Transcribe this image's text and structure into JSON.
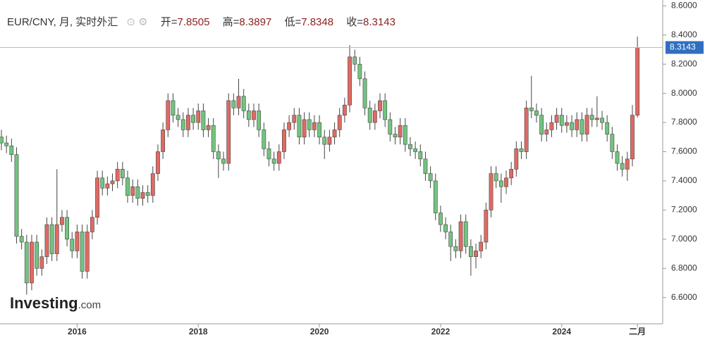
{
  "chart_data": {
    "type": "candlestick",
    "title": "EUR/CNY, 月, 实时外汇",
    "ohlc_labels": [
      "开=",
      "高=",
      "低=",
      "收="
    ],
    "watermark": [
      "Investing",
      ".com"
    ],
    "up_color": "#e06a64",
    "down_color": "#72c47e",
    "ylim": [
      6.42,
      8.64
    ],
    "yticks": [
      {
        "value": 6.6,
        "label": "6.6000"
      },
      {
        "value": 6.8,
        "label": "6.8000"
      },
      {
        "value": 7.0,
        "label": "7.0000"
      },
      {
        "value": 7.2,
        "label": "7.2000"
      },
      {
        "value": 7.4,
        "label": "7.4000"
      },
      {
        "value": 7.6,
        "label": "7.6000"
      },
      {
        "value": 7.8,
        "label": "7.8000"
      },
      {
        "value": 8.0,
        "label": "8.0000"
      },
      {
        "value": 8.2,
        "label": "8.2000"
      },
      {
        "value": 8.4,
        "label": "8.4000"
      },
      {
        "value": 8.6,
        "label": "8.6000"
      }
    ],
    "categories": [
      null,
      null,
      null,
      null,
      null,
      null,
      null,
      null,
      null,
      null,
      null,
      null,
      null,
      null,
      null,
      "2016",
      null,
      null,
      null,
      null,
      null,
      null,
      null,
      null,
      null,
      null,
      null,
      null,
      null,
      null,
      null,
      null,
      null,
      null,
      null,
      null,
      null,
      null,
      null,
      "2018",
      null,
      null,
      null,
      null,
      null,
      null,
      null,
      null,
      null,
      null,
      null,
      null,
      null,
      null,
      null,
      null,
      null,
      null,
      null,
      null,
      null,
      null,
      null,
      "2020",
      null,
      null,
      null,
      null,
      null,
      null,
      null,
      null,
      null,
      null,
      null,
      null,
      null,
      null,
      null,
      null,
      null,
      null,
      null,
      null,
      null,
      null,
      null,
      "2022",
      null,
      null,
      null,
      null,
      null,
      null,
      null,
      null,
      null,
      null,
      null,
      null,
      null,
      null,
      null,
      null,
      null,
      null,
      null,
      null,
      null,
      null,
      null,
      "2024",
      null,
      null,
      null,
      null,
      null,
      null,
      null,
      null,
      null,
      null,
      null,
      null,
      null,
      null,
      "二月"
    ],
    "open": [
      7.7,
      7.66,
      7.64,
      7.58,
      7.02,
      6.98,
      6.7,
      6.98,
      6.8,
      6.88,
      7.1,
      6.9,
      7.1,
      7.15,
      7.0,
      6.92,
      7.05,
      6.78,
      7.05,
      7.15,
      7.42,
      7.35,
      7.38,
      7.4,
      7.48,
      7.42,
      7.3,
      7.36,
      7.28,
      7.32,
      7.3,
      7.45,
      7.6,
      7.75,
      7.95,
      7.85,
      7.82,
      7.75,
      7.85,
      7.8,
      7.88,
      7.75,
      7.78,
      7.6,
      7.55,
      7.52,
      7.95,
      7.9,
      7.98,
      7.88,
      7.82,
      7.88,
      7.75,
      7.62,
      7.55,
      7.52,
      7.6,
      7.75,
      7.8,
      7.85,
      7.7,
      7.82,
      7.75,
      7.8,
      7.7,
      7.65,
      7.7,
      7.75,
      7.85,
      7.92,
      8.25,
      8.2,
      8.1,
      7.9,
      7.8,
      7.88,
      7.95,
      7.82,
      7.72,
      7.7,
      7.78,
      7.65,
      7.62,
      7.6,
      7.55,
      7.45,
      7.4,
      7.18,
      7.1,
      7.05,
      6.95,
      6.92,
      7.12,
      6.95,
      6.88,
      6.92,
      6.98,
      7.2,
      7.45,
      7.4,
      7.36,
      7.42,
      7.48,
      7.62,
      7.6,
      7.9,
      7.88,
      7.85,
      7.72,
      7.75,
      7.8,
      7.85,
      7.78,
      7.8,
      7.75,
      7.82,
      7.72,
      7.85,
      7.82,
      7.83,
      7.8,
      7.72,
      7.6,
      7.52,
      7.48,
      7.55,
      7.8505
    ],
    "high": [
      7.75,
      7.71,
      7.69,
      7.63,
      7.07,
      7.03,
      7.03,
      7.03,
      6.93,
      7.15,
      7.15,
      7.48,
      7.2,
      7.2,
      7.05,
      7.1,
      7.1,
      7.1,
      7.2,
      7.47,
      7.47,
      7.43,
      7.45,
      7.53,
      7.53,
      7.47,
      7.41,
      7.41,
      7.37,
      7.37,
      7.5,
      7.65,
      7.8,
      8.0,
      8.0,
      7.9,
      7.87,
      7.9,
      7.9,
      7.93,
      7.93,
      7.83,
      7.83,
      7.65,
      7.6,
      8.0,
      8.0,
      8.1,
      8.03,
      7.93,
      7.93,
      7.93,
      7.8,
      7.67,
      7.6,
      7.65,
      7.8,
      7.85,
      7.9,
      7.9,
      7.87,
      7.87,
      7.85,
      7.85,
      7.75,
      7.75,
      7.8,
      7.9,
      7.97,
      8.33,
      8.3,
      8.25,
      8.15,
      7.95,
      7.93,
      8.0,
      8.0,
      7.87,
      7.77,
      7.83,
      7.83,
      7.7,
      7.67,
      7.65,
      7.6,
      7.5,
      7.45,
      7.23,
      7.15,
      7.1,
      7.0,
      7.17,
      7.17,
      7.0,
      6.97,
      7.03,
      7.25,
      7.5,
      7.5,
      7.45,
      7.47,
      7.53,
      7.67,
      7.67,
      7.95,
      8.12,
      7.93,
      7.9,
      7.8,
      7.85,
      7.9,
      7.9,
      7.85,
      7.85,
      7.87,
      7.87,
      7.9,
      7.9,
      7.98,
      7.88,
      7.85,
      7.77,
      7.65,
      7.57,
      7.6,
      7.92,
      8.3897
    ],
    "low": [
      7.61,
      7.59,
      7.53,
      6.97,
      6.93,
      6.62,
      6.65,
      6.75,
      6.75,
      6.83,
      6.85,
      6.85,
      7.05,
      6.95,
      6.87,
      6.87,
      6.73,
      6.73,
      7.0,
      7.1,
      7.3,
      7.3,
      7.33,
      7.35,
      7.37,
      7.25,
      7.25,
      7.23,
      7.23,
      7.25,
      7.25,
      7.4,
      7.55,
      7.7,
      7.8,
      7.77,
      7.7,
      7.7,
      7.75,
      7.75,
      7.7,
      7.7,
      7.55,
      7.42,
      7.47,
      7.47,
      7.85,
      7.85,
      7.83,
      7.77,
      7.77,
      7.7,
      7.57,
      7.5,
      7.47,
      7.47,
      7.55,
      7.7,
      7.75,
      7.65,
      7.65,
      7.7,
      7.7,
      7.65,
      7.55,
      7.6,
      7.65,
      7.7,
      7.8,
      7.87,
      8.15,
      8.05,
      7.85,
      7.75,
      7.75,
      7.83,
      7.77,
      7.67,
      7.65,
      7.65,
      7.6,
      7.57,
      7.55,
      7.5,
      7.4,
      7.35,
      7.13,
      7.05,
      7.0,
      6.85,
      6.87,
      6.87,
      6.9,
      6.75,
      6.8,
      6.87,
      6.93,
      7.15,
      7.35,
      7.25,
      7.31,
      7.37,
      7.43,
      7.55,
      7.55,
      7.83,
      7.8,
      7.67,
      7.67,
      7.7,
      7.75,
      7.73,
      7.73,
      7.7,
      7.7,
      7.67,
      7.67,
      7.77,
      7.77,
      7.75,
      7.67,
      7.55,
      7.47,
      7.43,
      7.4,
      7.5,
      7.8348
    ],
    "close": [
      7.66,
      7.64,
      7.58,
      7.02,
      6.98,
      6.7,
      6.98,
      6.8,
      6.88,
      7.1,
      6.9,
      7.1,
      7.15,
      7.0,
      6.92,
      7.05,
      6.78,
      7.05,
      7.15,
      7.42,
      7.35,
      7.38,
      7.4,
      7.48,
      7.42,
      7.3,
      7.36,
      7.28,
      7.32,
      7.3,
      7.45,
      7.6,
      7.75,
      7.95,
      7.85,
      7.82,
      7.75,
      7.85,
      7.8,
      7.88,
      7.75,
      7.78,
      7.6,
      7.55,
      7.52,
      7.95,
      7.9,
      7.98,
      7.88,
      7.82,
      7.88,
      7.75,
      7.62,
      7.55,
      7.52,
      7.6,
      7.75,
      7.8,
      7.85,
      7.7,
      7.82,
      7.75,
      7.8,
      7.7,
      7.65,
      7.7,
      7.75,
      7.85,
      7.92,
      8.25,
      8.2,
      8.1,
      7.9,
      7.8,
      7.88,
      7.95,
      7.82,
      7.72,
      7.7,
      7.78,
      7.65,
      7.62,
      7.6,
      7.55,
      7.45,
      7.4,
      7.18,
      7.1,
      7.05,
      6.95,
      6.92,
      7.12,
      6.95,
      6.88,
      6.92,
      6.98,
      7.2,
      7.45,
      7.4,
      7.36,
      7.42,
      7.48,
      7.62,
      7.6,
      7.9,
      7.88,
      7.85,
      7.72,
      7.75,
      7.8,
      7.85,
      7.78,
      7.8,
      7.75,
      7.82,
      7.72,
      7.85,
      7.82,
      7.83,
      7.8,
      7.72,
      7.6,
      7.52,
      7.48,
      7.55,
      7.8505,
      8.3143
    ]
  }
}
